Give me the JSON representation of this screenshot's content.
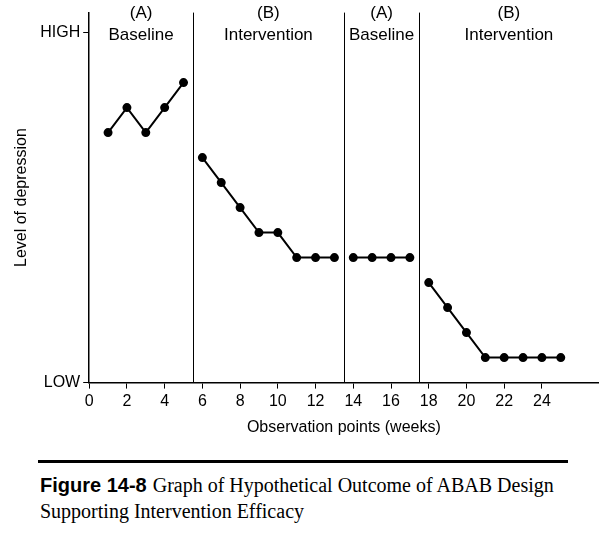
{
  "chart_data": {
    "type": "line",
    "x_label": "Observation points (weeks)",
    "y_label": "Level of depression",
    "x": [
      1,
      2,
      3,
      4,
      5,
      6,
      7,
      8,
      9,
      10,
      11,
      12,
      13,
      14,
      15,
      16,
      17,
      18,
      19,
      20,
      21,
      22,
      23,
      24,
      25
    ],
    "values": [
      5,
      5.5,
      5,
      5.5,
      6,
      4.5,
      4,
      3.5,
      3,
      3,
      2.5,
      2.5,
      2.5,
      2.5,
      2.5,
      2.5,
      2.5,
      2,
      1.5,
      1,
      0.5,
      0.5,
      0.5,
      0.5,
      0.5
    ],
    "xlim": [
      0,
      27
    ],
    "xticks": [
      0,
      2,
      4,
      6,
      8,
      10,
      12,
      14,
      16,
      18,
      20,
      22,
      24
    ],
    "ylim": [
      0,
      7.4
    ],
    "yticks": [
      {
        "value": 0,
        "label": "LOW"
      },
      {
        "value": 7,
        "label": "HIGH"
      }
    ],
    "grid": false,
    "color": "#000000",
    "marker": "circle",
    "line_style": "solid",
    "phase_boundaries": [
      5.5,
      13.5,
      17.5
    ],
    "phases": [
      {
        "label": [
          "(A)",
          "Baseline"
        ]
      },
      {
        "label": [
          "(B)",
          "Intervention"
        ]
      },
      {
        "label": [
          "(A)",
          "Baseline"
        ]
      },
      {
        "label": [
          "(B)",
          "Intervention"
        ]
      }
    ],
    "caption_label": "Figure 14-8",
    "caption": "Graph of Hypothetical Outcome of ABAB Design Supporting Intervention Efficacy"
  }
}
